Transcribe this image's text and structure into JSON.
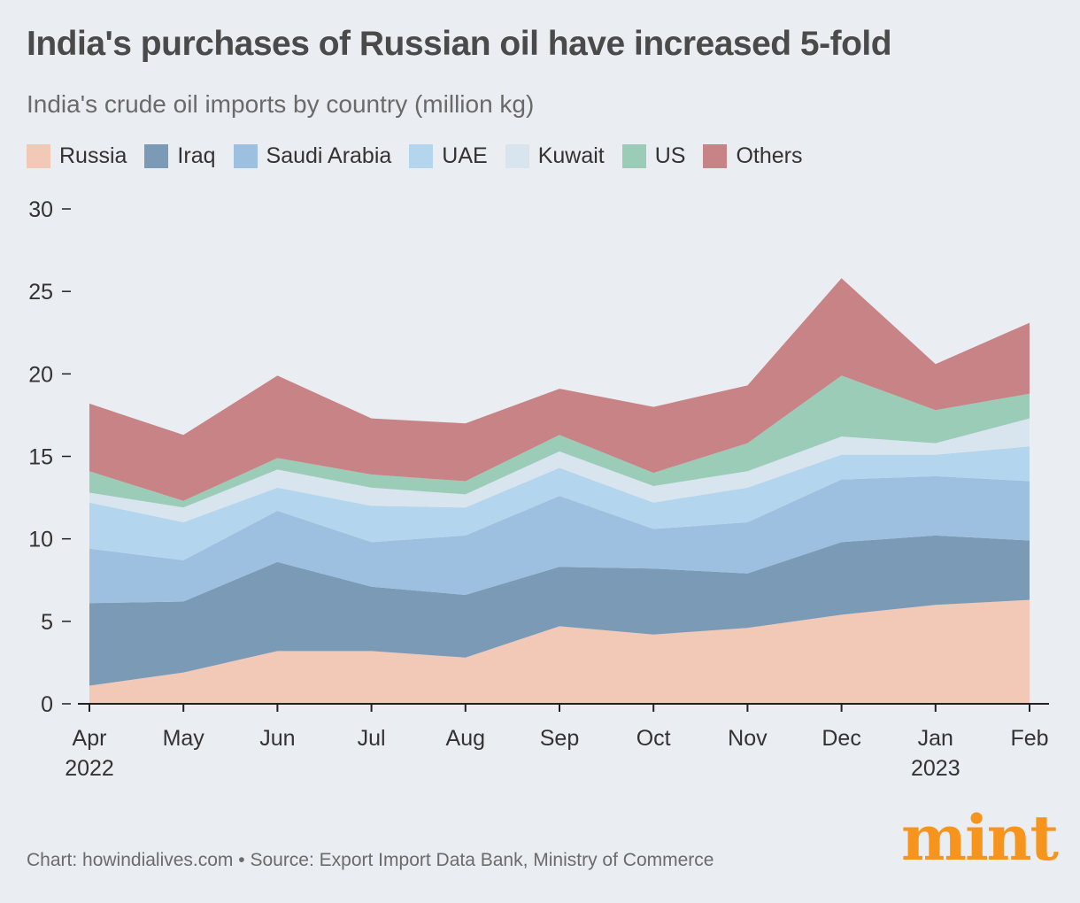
{
  "header": {
    "title": "India's purchases of Russian oil have increased 5-fold",
    "subtitle": "India's crude oil imports by country (million kg)"
  },
  "footer": {
    "source": "Chart: howindialives.com • Source: Export Import Data Bank, Ministry of Commerce",
    "logo": "mint"
  },
  "chart_data": {
    "type": "area",
    "stacked": true,
    "ylim": [
      0,
      30
    ],
    "y_ticks": [
      0,
      5,
      10,
      15,
      20,
      25,
      30
    ],
    "x_labels": [
      {
        "month": "Apr",
        "year": "2022"
      },
      {
        "month": "May",
        "year": ""
      },
      {
        "month": "Jun",
        "year": ""
      },
      {
        "month": "Jul",
        "year": ""
      },
      {
        "month": "Aug",
        "year": ""
      },
      {
        "month": "Sep",
        "year": ""
      },
      {
        "month": "Oct",
        "year": ""
      },
      {
        "month": "Nov",
        "year": ""
      },
      {
        "month": "Dec",
        "year": ""
      },
      {
        "month": "Jan",
        "year": "2023"
      },
      {
        "month": "Feb",
        "year": ""
      }
    ],
    "legend_position": "top-left",
    "grid": false,
    "series": [
      {
        "name": "Russia",
        "color": "#f2c8b6",
        "values": [
          1.1,
          1.9,
          3.2,
          3.2,
          2.8,
          4.7,
          4.2,
          4.6,
          5.4,
          6.0,
          6.3
        ]
      },
      {
        "name": "Iraq",
        "color": "#7a9ab5",
        "values": [
          5.0,
          4.3,
          5.4,
          3.9,
          3.8,
          3.6,
          4.0,
          3.3,
          4.4,
          4.2,
          3.6
        ]
      },
      {
        "name": "Saudi Arabia",
        "color": "#9dbfe0",
        "values": [
          3.3,
          2.5,
          3.1,
          2.7,
          3.6,
          4.3,
          2.4,
          3.1,
          3.8,
          3.6,
          3.6
        ]
      },
      {
        "name": "UAE",
        "color": "#b3d5ed",
        "values": [
          2.8,
          2.3,
          1.4,
          2.2,
          1.7,
          1.7,
          1.6,
          2.1,
          1.5,
          1.3,
          2.1
        ]
      },
      {
        "name": "Kuwait",
        "color": "#d8e5ef",
        "values": [
          0.6,
          0.9,
          1.1,
          1.1,
          0.8,
          1.0,
          1.0,
          1.0,
          1.1,
          0.7,
          1.7
        ]
      },
      {
        "name": "US",
        "color": "#9bccb7",
        "values": [
          1.3,
          0.4,
          0.7,
          0.8,
          0.8,
          1.0,
          0.8,
          1.7,
          3.7,
          2.0,
          1.5
        ]
      },
      {
        "name": "Others",
        "color": "#c78386",
        "values": [
          4.1,
          4.0,
          5.0,
          3.4,
          3.5,
          2.8,
          4.0,
          3.5,
          5.9,
          2.8,
          4.3
        ]
      }
    ]
  }
}
